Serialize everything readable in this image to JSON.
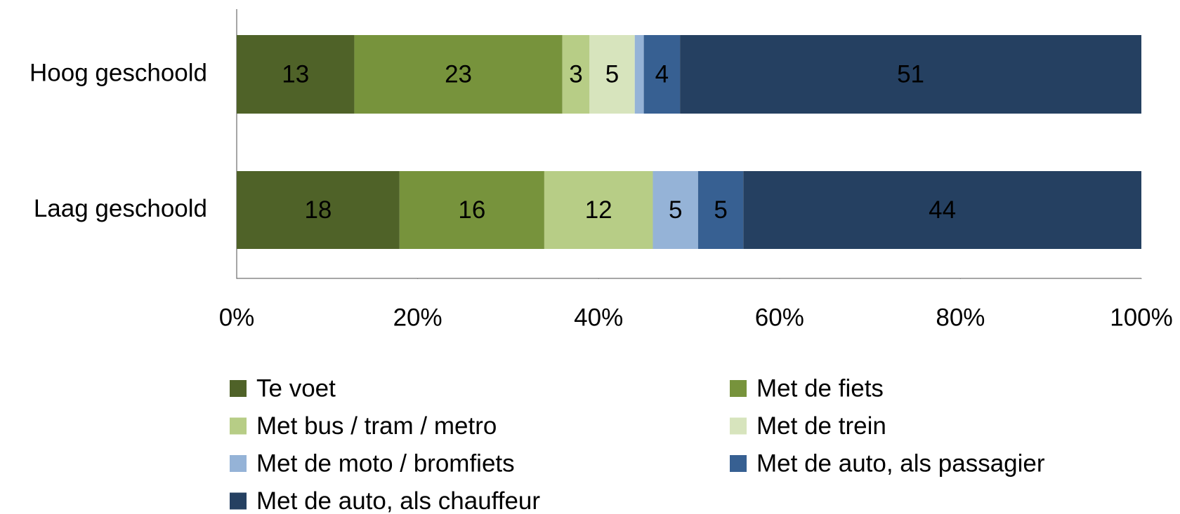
{
  "chart_data": {
    "type": "stacked-bar-horizontal",
    "categories": [
      "Hoog geschoold",
      "Laag geschoold"
    ],
    "series": [
      {
        "name": "Te voet",
        "color": "#4f6228",
        "values": [
          13,
          18
        ]
      },
      {
        "name": "Met de fiets",
        "color": "#77933c",
        "values": [
          23,
          16
        ]
      },
      {
        "name": "Met bus / tram / metro",
        "color": "#b7cd86",
        "values": [
          3,
          12
        ]
      },
      {
        "name": "Met de trein",
        "color": "#d7e4bd",
        "values": [
          5,
          0
        ]
      },
      {
        "name": "Met de moto / bromfiets",
        "color": "#95b3d7",
        "values": [
          1,
          5
        ]
      },
      {
        "name": "Met de auto, als passagier",
        "color": "#376092",
        "values": [
          4,
          5
        ]
      },
      {
        "name": "Met de auto, als chauffeur",
        "color": "#254061",
        "values": [
          51,
          44
        ]
      }
    ],
    "xlim": [
      0,
      100
    ],
    "xticks": [
      {
        "value": 0,
        "label": "0%"
      },
      {
        "value": 20,
        "label": "20%"
      },
      {
        "value": 40,
        "label": "40%"
      },
      {
        "value": 60,
        "label": "60%"
      },
      {
        "value": 80,
        "label": "80%"
      },
      {
        "value": 100,
        "label": "100%"
      }
    ],
    "grid": false,
    "legend": "bottom"
  }
}
